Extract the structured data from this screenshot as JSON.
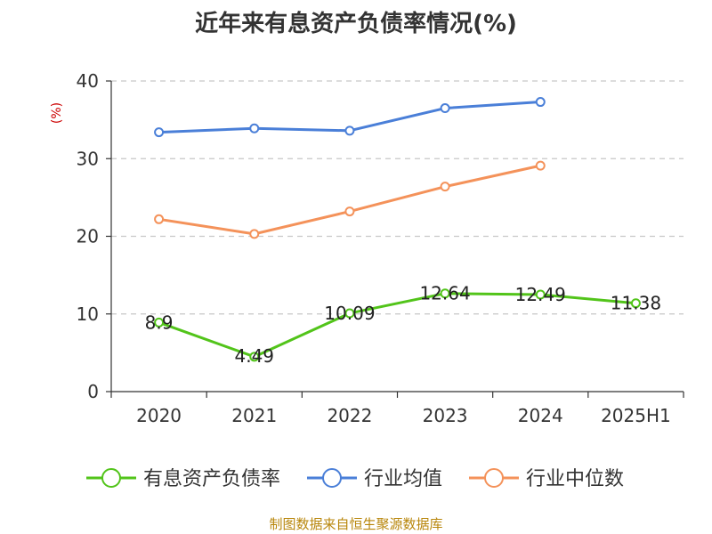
{
  "chart_data": {
    "type": "line",
    "title": "近年来有息资产负债率情况(%)",
    "ylabel": "(%)",
    "ylim": [
      0,
      40
    ],
    "yticks": [
      0,
      10,
      20,
      30,
      40
    ],
    "categories": [
      "2020",
      "2021",
      "2022",
      "2023",
      "2024",
      "2025H1"
    ],
    "grid": true,
    "legend_position": "bottom",
    "series": [
      {
        "name": "有息资产负债率",
        "color": "#52c41a",
        "values": [
          8.9,
          4.49,
          10.09,
          12.64,
          12.49,
          11.38
        ],
        "labels": [
          "8.9",
          "4.49",
          "10.09",
          "12.64",
          "12.49",
          "11.38"
        ]
      },
      {
        "name": "行业均值",
        "color": "#4a7fd8",
        "values": [
          33.4,
          33.9,
          33.6,
          36.5,
          37.3,
          null
        ]
      },
      {
        "name": "行业中位数",
        "color": "#f4925a",
        "values": [
          22.2,
          20.3,
          23.2,
          26.4,
          29.1,
          null
        ]
      }
    ]
  },
  "source": "制图数据来自恒生聚源数据库"
}
